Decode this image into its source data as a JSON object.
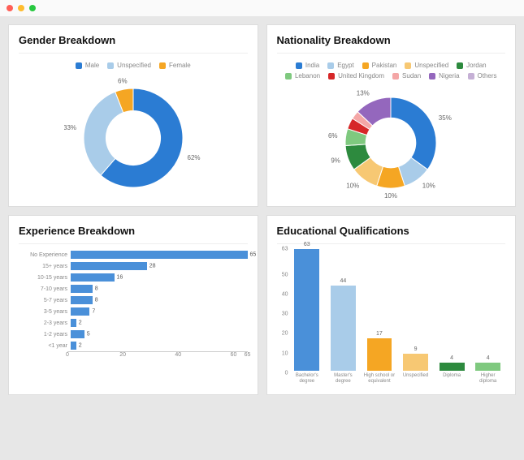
{
  "window": {
    "dot_colors": [
      "#ff5f57",
      "#febc2e",
      "#28c840"
    ]
  },
  "gender_chart": {
    "title": "Gender Breakdown",
    "type": "donut",
    "inner_radius_pct": 55,
    "background_color": "#ffffff",
    "series": [
      {
        "label": "Male",
        "value": 62,
        "color": "#2b7cd3",
        "show_pct": "62%"
      },
      {
        "label": "Unspecified",
        "value": 33,
        "color": "#a9cce9",
        "show_pct": "33%"
      },
      {
        "label": "Female",
        "value": 6,
        "color": "#f5a623",
        "show_pct": "6%"
      }
    ]
  },
  "nationality_chart": {
    "title": "Nationality Breakdown",
    "type": "donut",
    "inner_radius_pct": 55,
    "background_color": "#ffffff",
    "series": [
      {
        "label": "India",
        "value": 35,
        "color": "#2b7cd3",
        "show_pct": "35%"
      },
      {
        "label": "Egypt",
        "value": 10,
        "color": "#a9cce9",
        "show_pct": "10%"
      },
      {
        "label": "Pakistan",
        "value": 10,
        "color": "#f5a623",
        "show_pct": "10%"
      },
      {
        "label": "Unspecified",
        "value": 10,
        "color": "#f7c873",
        "show_pct": "10%"
      },
      {
        "label": "Jordan",
        "value": 9,
        "color": "#2d8a3e",
        "show_pct": "9%"
      },
      {
        "label": "Lebanon",
        "value": 6,
        "color": "#7fc97f",
        "show_pct": "6%"
      },
      {
        "label": "United Kingdom",
        "value": 4,
        "color": "#d62728",
        "show_pct": ""
      },
      {
        "label": "Sudan",
        "value": 3,
        "color": "#f4a6a6",
        "show_pct": ""
      },
      {
        "label": "Nigeria",
        "value": 13,
        "color": "#9467bd",
        "show_pct": "13%"
      },
      {
        "label": "Others",
        "value": 0,
        "color": "#c5b0d5",
        "show_pct": ""
      }
    ]
  },
  "experience_chart": {
    "title": "Experience Breakdown",
    "type": "bar-horizontal",
    "bar_color": "#4a90d9",
    "background_color": "#ffffff",
    "label_fontsize": 7,
    "x_ticks": [
      0,
      20,
      40,
      60,
      65
    ],
    "x_max": 65,
    "categories": [
      {
        "label": "No Experience",
        "value": 65
      },
      {
        "label": "15+ years",
        "value": 28
      },
      {
        "label": "10-15 years",
        "value": 16
      },
      {
        "label": "7-10 years",
        "value": 8
      },
      {
        "label": "5-7 years",
        "value": 8
      },
      {
        "label": "3-5 years",
        "value": 7
      },
      {
        "label": "2-3 years",
        "value": 2
      },
      {
        "label": "1-2 years",
        "value": 5
      },
      {
        "label": "<1 year",
        "value": 2
      }
    ]
  },
  "education_chart": {
    "title": "Educational Qualifications",
    "type": "bar-vertical",
    "background_color": "#ffffff",
    "label_fontsize": 7,
    "y_ticks": [
      0,
      10,
      20,
      30,
      40,
      50,
      63
    ],
    "y_max": 63,
    "categories": [
      {
        "label": "Bachelor's degree",
        "value": 63,
        "color": "#4a90d9"
      },
      {
        "label": "Master's degree",
        "value": 44,
        "color": "#a9cce9"
      },
      {
        "label": "High school or equivalent",
        "value": 17,
        "color": "#f5a623"
      },
      {
        "label": "Unspecified",
        "value": 9,
        "color": "#f7c873"
      },
      {
        "label": "Diploma",
        "value": 4,
        "color": "#2d8a3e"
      },
      {
        "label": "Higher diploma",
        "value": 4,
        "color": "#7fc97f"
      }
    ]
  }
}
